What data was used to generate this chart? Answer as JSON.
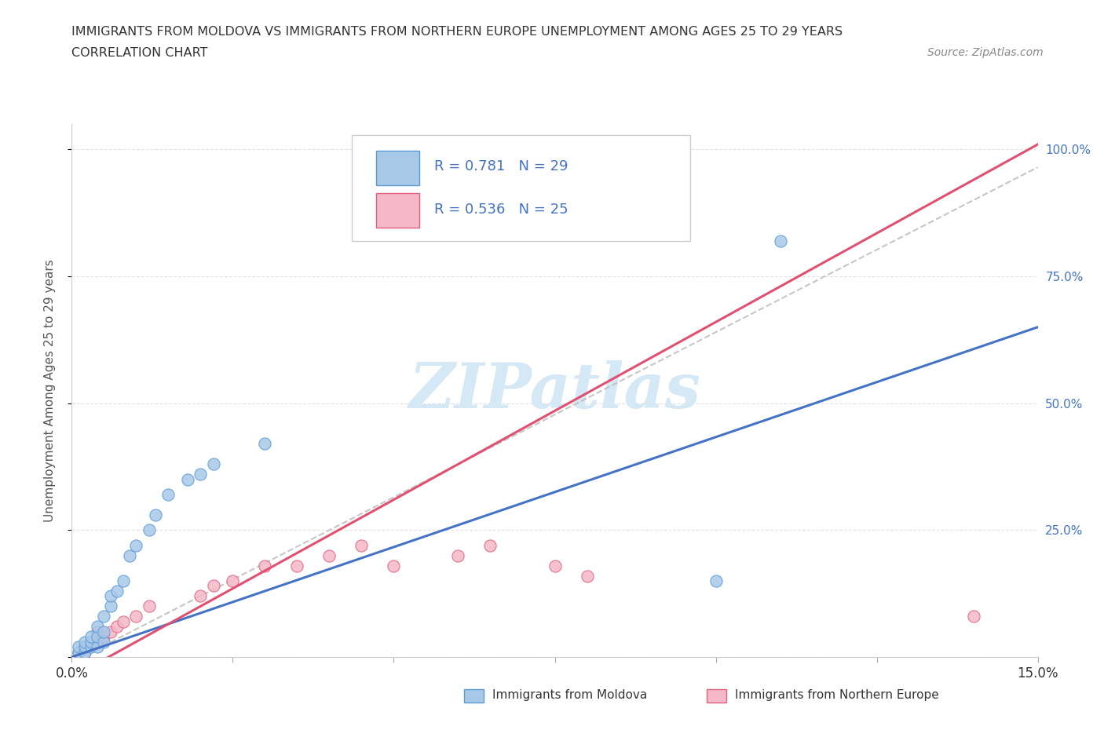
{
  "title_line1": "IMMIGRANTS FROM MOLDOVA VS IMMIGRANTS FROM NORTHERN EUROPE UNEMPLOYMENT AMONG AGES 25 TO 29 YEARS",
  "title_line2": "CORRELATION CHART",
  "source": "Source: ZipAtlas.com",
  "ylabel": "Unemployment Among Ages 25 to 29 years",
  "xlim": [
    0.0,
    0.15
  ],
  "ylim": [
    0.0,
    1.05
  ],
  "xtick_positions": [
    0.0,
    0.025,
    0.05,
    0.075,
    0.1,
    0.125,
    0.15
  ],
  "xtick_labels": [
    "0.0%",
    "",
    "",
    "",
    "",
    "",
    "15.0%"
  ],
  "ytick_positions": [
    0.0,
    0.25,
    0.5,
    0.75,
    1.0
  ],
  "ytick_labels_right": [
    "",
    "25.0%",
    "50.0%",
    "75.0%",
    "100.0%"
  ],
  "moldova_color": "#a8c8e8",
  "moldova_edge_color": "#5b9bd5",
  "northern_color": "#f4b8c8",
  "northern_edge_color": "#e06080",
  "moldova_line_color": "#4472c4",
  "northern_line_color": "#e05070",
  "dashed_line_color": "#c0c0c0",
  "moldova_R": 0.781,
  "moldova_N": 29,
  "northern_R": 0.536,
  "northern_N": 25,
  "legend_label_moldova": "Immigrants from Moldova",
  "legend_label_northern": "Immigrants from Northern Europe",
  "moldova_x": [
    0.001,
    0.001,
    0.002,
    0.002,
    0.002,
    0.003,
    0.003,
    0.003,
    0.004,
    0.004,
    0.004,
    0.005,
    0.005,
    0.005,
    0.006,
    0.006,
    0.007,
    0.008,
    0.009,
    0.01,
    0.012,
    0.013,
    0.015,
    0.018,
    0.02,
    0.022,
    0.03,
    0.1,
    0.11
  ],
  "moldova_y": [
    0.01,
    0.02,
    0.01,
    0.02,
    0.03,
    0.02,
    0.03,
    0.04,
    0.02,
    0.04,
    0.06,
    0.03,
    0.05,
    0.08,
    0.1,
    0.12,
    0.13,
    0.15,
    0.2,
    0.22,
    0.25,
    0.28,
    0.32,
    0.35,
    0.36,
    0.38,
    0.42,
    0.15,
    0.82
  ],
  "northern_x": [
    0.001,
    0.002,
    0.002,
    0.003,
    0.004,
    0.004,
    0.005,
    0.006,
    0.007,
    0.008,
    0.01,
    0.012,
    0.02,
    0.022,
    0.025,
    0.03,
    0.035,
    0.04,
    0.045,
    0.05,
    0.06,
    0.065,
    0.075,
    0.08,
    0.14
  ],
  "northern_y": [
    0.01,
    0.01,
    0.02,
    0.03,
    0.03,
    0.05,
    0.04,
    0.05,
    0.06,
    0.07,
    0.08,
    0.1,
    0.12,
    0.14,
    0.15,
    0.18,
    0.18,
    0.2,
    0.22,
    0.18,
    0.2,
    0.22,
    0.18,
    0.16,
    0.08
  ],
  "background_color": "#ffffff",
  "grid_color": "#e0e0e0",
  "watermark_color": "#d5e8f5"
}
